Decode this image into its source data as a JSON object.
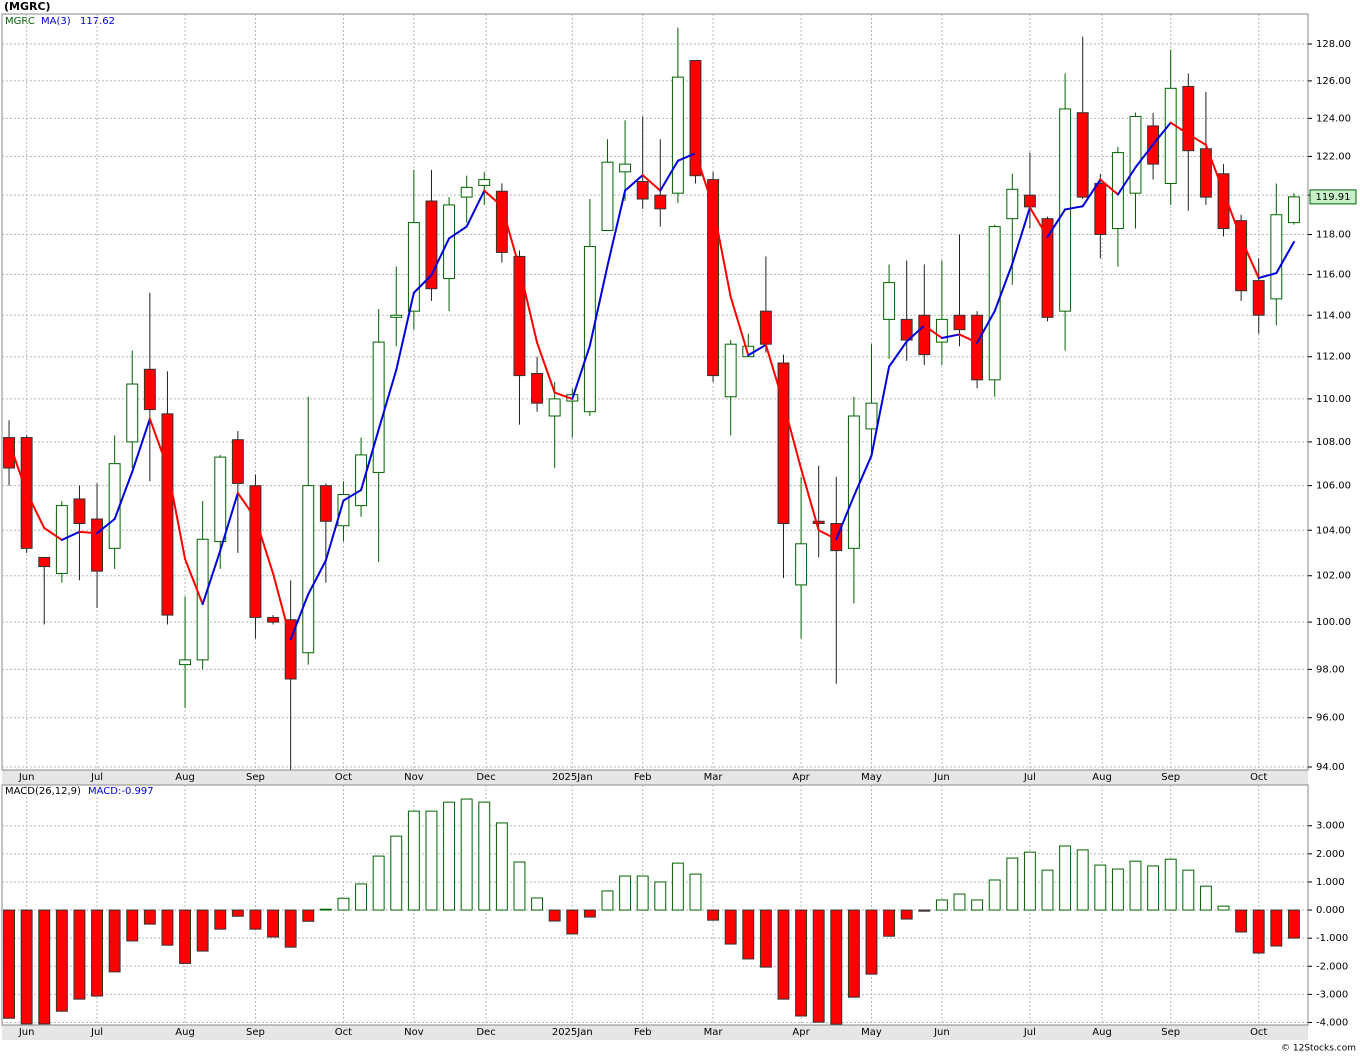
{
  "title": "(MGRC)",
  "footer": "© 12Stocks.com",
  "chart_data": [
    {
      "type": "candlestick",
      "name": "MGRC",
      "log_scale": true,
      "grid": true,
      "up_color": "#006400",
      "down_color": "#ff0000",
      "legend": "upper left",
      "categories": [
        null,
        null,
        null,
        null,
        null,
        null,
        null,
        null,
        null,
        null,
        null,
        null,
        null,
        null,
        null,
        null,
        null,
        null,
        null,
        null,
        null,
        null,
        null,
        null,
        null,
        null,
        null,
        null,
        null,
        null,
        null,
        null,
        null,
        null,
        null,
        null,
        null,
        null,
        null,
        null,
        null,
        null,
        null,
        null,
        null,
        null,
        null,
        null,
        null,
        null,
        null,
        null,
        null,
        null,
        null,
        null,
        null,
        null,
        null,
        null,
        null,
        null,
        null,
        null,
        null,
        null,
        null,
        null,
        null,
        null,
        null,
        null,
        null,
        null
      ],
      "open": [
        108.2,
        108.2,
        102.8,
        102.1,
        105.4,
        104.5,
        103.2,
        108,
        111.4,
        109.3,
        98.2,
        98.4,
        103.5,
        108.1,
        106,
        100.2,
        100.1,
        98.7,
        106,
        104.2,
        105.1,
        106.6,
        113.9,
        114.2,
        119.7,
        115.8,
        119.9,
        120.5,
        120.2,
        116.9,
        111.2,
        109.2,
        109.9,
        109.4,
        118.2,
        121.2,
        120.7,
        120,
        120.1,
        127.1,
        120.8,
        110.1,
        112,
        114.2,
        111.7,
        101.6,
        104.4,
        104.3,
        103.2,
        108.6,
        113.8,
        113.8,
        114,
        112.7,
        114,
        114,
        110.9,
        118.8,
        120,
        118.8,
        114.2,
        124.3,
        120.6,
        118.3,
        120.1,
        123.6,
        120.6,
        125.7,
        122.4,
        121.1,
        118.7,
        115.7,
        114.8,
        118.6
      ],
      "high": [
        109,
        108.3,
        102.8,
        105.3,
        106,
        106.1,
        108.3,
        112.3,
        115.1,
        111.3,
        101.1,
        105.3,
        107.4,
        108.5,
        106.5,
        100.3,
        101.8,
        110.1,
        106.1,
        106.2,
        108.2,
        114.3,
        116.4,
        121.3,
        121.3,
        119.9,
        121,
        121.2,
        120.6,
        117.2,
        112,
        110.8,
        110.5,
        119.8,
        122.9,
        123.9,
        124.1,
        122.9,
        128.9,
        127.1,
        121.2,
        112.8,
        113.1,
        116.9,
        112.1,
        106.4,
        106.9,
        106.4,
        110.1,
        112.6,
        116.5,
        116.7,
        116.5,
        116.7,
        118,
        114.2,
        118.5,
        121.1,
        122.2,
        118.9,
        126.4,
        128.4,
        121.1,
        122.5,
        124.3,
        124.3,
        127.7,
        126.4,
        125.4,
        121.6,
        119,
        116.8,
        120.6,
        120.1
      ],
      "low": [
        106,
        103,
        99.9,
        101.7,
        101.8,
        100.6,
        102.3,
        106.8,
        106.2,
        99.9,
        96.4,
        98,
        102.3,
        103,
        99.3,
        99.9,
        93.9,
        98.2,
        101.7,
        103.5,
        104.6,
        102.6,
        112.5,
        113.3,
        114.7,
        114.2,
        118.6,
        119.5,
        116.6,
        108.8,
        109.4,
        106.8,
        108.2,
        109.2,
        118.2,
        119.7,
        119.3,
        118.4,
        119.6,
        120.6,
        110.8,
        108.3,
        112,
        112.2,
        101.9,
        99.3,
        102.8,
        97.4,
        100.8,
        107.3,
        111.9,
        111.8,
        111.6,
        111.6,
        112.5,
        110.5,
        110.1,
        115.5,
        118.3,
        113.7,
        112.3,
        119.8,
        116.8,
        116.4,
        118.3,
        120.8,
        119.5,
        119.2,
        119.5,
        117.9,
        114.7,
        113.1,
        113.5,
        118.5
      ],
      "close": [
        106.8,
        103.2,
        102.4,
        105.1,
        104.3,
        102.2,
        107,
        110.7,
        109.5,
        100.3,
        98.4,
        103.6,
        107.3,
        106.1,
        100.2,
        100,
        97.6,
        106,
        104.4,
        105.6,
        107.4,
        112.7,
        114,
        118.6,
        115.3,
        119.5,
        120.4,
        120.8,
        117.1,
        111.1,
        109.8,
        110,
        110.2,
        117.4,
        121.7,
        121.6,
        119.8,
        119.3,
        126.2,
        121,
        111.1,
        112.6,
        112.5,
        112.6,
        104.3,
        103.4,
        104.3,
        103.1,
        109.2,
        109.8,
        115.6,
        112.8,
        112.1,
        113.8,
        113.3,
        110.9,
        118.4,
        120.3,
        119.4,
        113.9,
        124.5,
        119.9,
        118,
        122.2,
        124.1,
        121.6,
        125.6,
        122.3,
        119.9,
        118.3,
        115.2,
        114,
        119,
        119.91
      ],
      "ma": {
        "name": "MA(3)",
        "up_color": "#0000dd",
        "down_color": "#ff0000",
        "values": [
          108,
          105.7,
          104.1,
          103.57,
          103.93,
          103.87,
          104.5,
          106.63,
          109.07,
          106.83,
          102.73,
          100.77,
          103.1,
          105.67,
          104.53,
          102.1,
          99.27,
          101.2,
          102.67,
          105.33,
          105.8,
          108.57,
          111.37,
          115.1,
          115.97,
          117.8,
          118.4,
          120.23,
          119.43,
          116.33,
          112.67,
          110.3,
          110,
          112.53,
          116.43,
          120.23,
          121.03,
          120.23,
          121.77,
          122.17,
          119.43,
          114.9,
          112.07,
          112.57,
          109.8,
          106.77,
          104,
          103.6,
          105.53,
          107.37,
          111.53,
          112.73,
          113.5,
          112.9,
          113.07,
          112.67,
          114.2,
          116.53,
          119.37,
          117.87,
          119.27,
          119.43,
          120.8,
          120.03,
          121.43,
          122.63,
          123.77,
          123.17,
          122.6,
          120.17,
          117.8,
          115.83,
          116.07,
          117.62
        ]
      },
      "xlim": [
        -0.4,
        73.8
      ],
      "xticks": [
        {
          "value": 1,
          "label": "Jun"
        },
        {
          "value": 5,
          "label": "Jul"
        },
        {
          "value": 10,
          "label": "Aug"
        },
        {
          "value": 14,
          "label": "Sep"
        },
        {
          "value": 19,
          "label": "Oct"
        },
        {
          "value": 23,
          "label": "Nov"
        },
        {
          "value": 27.1,
          "label": "Dec"
        },
        {
          "value": 32,
          "label": "2025Jan"
        },
        {
          "value": 36,
          "label": "Feb"
        },
        {
          "value": 40,
          "label": "Mar"
        },
        {
          "value": 45,
          "label": "Apr"
        },
        {
          "value": 49,
          "label": "May"
        },
        {
          "value": 53,
          "label": "Jun"
        },
        {
          "value": 58,
          "label": "Jul"
        },
        {
          "value": 62.1,
          "label": "Aug"
        },
        {
          "value": 66,
          "label": "Sep"
        },
        {
          "value": 71,
          "label": "Oct"
        }
      ],
      "ylim": [
        93.88,
        129.65
      ],
      "yticks": [
        {
          "value": 94,
          "label": "94.00"
        },
        {
          "value": 96,
          "label": "96.00"
        },
        {
          "value": 98,
          "label": "98.00"
        },
        {
          "value": 100,
          "label": "100.00"
        },
        {
          "value": 102,
          "label": "102.00"
        },
        {
          "value": 104,
          "label": "104.00"
        },
        {
          "value": 106,
          "label": "106.00"
        },
        {
          "value": 108,
          "label": "108.00"
        },
        {
          "value": 110,
          "label": "110.00"
        },
        {
          "value": 112,
          "label": "112.00"
        },
        {
          "value": 114,
          "label": "114.00"
        },
        {
          "value": 116,
          "label": "116.00"
        },
        {
          "value": 118,
          "label": "118.00"
        },
        {
          "value": 120,
          "label": "120.00"
        },
        {
          "value": 122,
          "label": "122.00"
        },
        {
          "value": 124,
          "label": "124.00"
        },
        {
          "value": 126,
          "label": "126.00"
        },
        {
          "value": 128,
          "label": "128.00"
        }
      ]
    },
    {
      "type": "bar",
      "name": "MACD(26,12,9)",
      "label": "MACD:",
      "grid": true,
      "up_color": "#006400",
      "down_color": "#ff0000",
      "categories": [
        null,
        null,
        null,
        null,
        null,
        null,
        null,
        null,
        null,
        null,
        null,
        null,
        null,
        null,
        null,
        null,
        null,
        null,
        null,
        null,
        null,
        null,
        null,
        null,
        null,
        null,
        null,
        null,
        null,
        null,
        null,
        null,
        null,
        null,
        null,
        null,
        null,
        null,
        null,
        null,
        null,
        null,
        null,
        null,
        null,
        null,
        null,
        null,
        null,
        null,
        null,
        null,
        null,
        null,
        null,
        null,
        null,
        null,
        null,
        null,
        null,
        null,
        null,
        null,
        null,
        null,
        null,
        null,
        null,
        null,
        null,
        null,
        null,
        null
      ],
      "values": [
        -3.85,
        -4.05,
        -4.05,
        -3.6,
        -3.17,
        -3.06,
        -2.2,
        -1.1,
        -0.5,
        -1.25,
        -1.9,
        -1.46,
        -0.68,
        -0.22,
        -0.68,
        -0.96,
        -1.32,
        -0.4,
        0.03,
        0.42,
        0.93,
        1.92,
        2.63,
        3.52,
        3.52,
        3.84,
        3.95,
        3.84,
        3.1,
        1.71,
        0.43,
        -0.39,
        -0.85,
        -0.25,
        0.68,
        1.21,
        1.21,
        1,
        1.67,
        1.28,
        -0.36,
        -1.21,
        -1.74,
        -2.03,
        -3.17,
        -3.77,
        -3.99,
        -4.06,
        -3.1,
        -2.28,
        -0.93,
        -0.32,
        -0.04,
        0.36,
        0.57,
        0.36,
        1.07,
        1.85,
        2.06,
        1.42,
        2.28,
        2.14,
        1.6,
        1.46,
        1.74,
        1.57,
        1.81,
        1.42,
        0.85,
        0.14,
        -0.78,
        -1.53,
        -1.28,
        -0.997
      ],
      "xlim": [
        -0.4,
        73.8
      ],
      "xticks": [
        {
          "value": 1,
          "label": "Jun"
        },
        {
          "value": 5,
          "label": "Jul"
        },
        {
          "value": 10,
          "label": "Aug"
        },
        {
          "value": 14,
          "label": "Sep"
        },
        {
          "value": 19,
          "label": "Oct"
        },
        {
          "value": 23,
          "label": "Nov"
        },
        {
          "value": 27.1,
          "label": "Dec"
        },
        {
          "value": 32,
          "label": "2025Jan"
        },
        {
          "value": 36,
          "label": "Feb"
        },
        {
          "value": 40,
          "label": "Mar"
        },
        {
          "value": 45,
          "label": "Apr"
        },
        {
          "value": 49,
          "label": "May"
        },
        {
          "value": 53,
          "label": "Jun"
        },
        {
          "value": 58,
          "label": "Jul"
        },
        {
          "value": 62.1,
          "label": "Aug"
        },
        {
          "value": 66,
          "label": "Sep"
        },
        {
          "value": 71,
          "label": "Oct"
        }
      ],
      "ylim": [
        -4.09,
        4.45
      ],
      "yticks": [
        {
          "value": -4,
          "label": "-4.000"
        },
        {
          "value": -3,
          "label": "-3.000"
        },
        {
          "value": -2,
          "label": "-2.000"
        },
        {
          "value": -1,
          "label": "-1.000"
        },
        {
          "value": 0,
          "label": "0.000"
        },
        {
          "value": 1,
          "label": "1.000"
        },
        {
          "value": 2,
          "label": "2.000"
        },
        {
          "value": 3,
          "label": "3.000"
        }
      ]
    }
  ]
}
